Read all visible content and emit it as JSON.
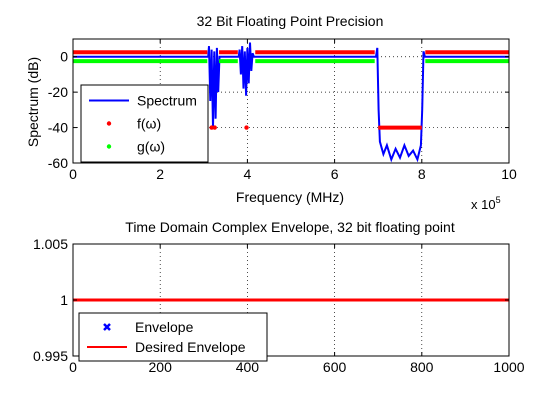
{
  "chart_data": [
    {
      "type": "line",
      "title": "32 Bit Floating Point Precision",
      "xlabel": "Frequency (MHz)",
      "ylabel": "Spectrum (dB)",
      "xlim": [
        0,
        1000000
      ],
      "ylim": [
        -60,
        10
      ],
      "x_ticks": [
        0,
        200000,
        400000,
        600000,
        800000,
        1000000
      ],
      "x_tick_labels": [
        "0",
        "2",
        "4",
        "6",
        "8",
        "10"
      ],
      "x_exponent_label": "x 10",
      "x_exponent_power": "5",
      "y_ticks": [
        -60,
        -40,
        -20,
        0
      ],
      "y_tick_labels": [
        "-60",
        "-40",
        "-20",
        "0"
      ],
      "grid": true,
      "legend_position": "bottom-left",
      "series": [
        {
          "name": "Spectrum",
          "style": "line",
          "color": "#0000ff",
          "points": [
            [
              0,
              0
            ],
            [
              310000,
              0
            ],
            [
              312000,
              6
            ],
            [
              315000,
              -25
            ],
            [
              318000,
              4
            ],
            [
              321000,
              -40
            ],
            [
              324000,
              3
            ],
            [
              327000,
              -35
            ],
            [
              330000,
              5
            ],
            [
              333000,
              -20
            ],
            [
              336000,
              0
            ],
            [
              380000,
              0
            ],
            [
              382000,
              4
            ],
            [
              385000,
              -10
            ],
            [
              388000,
              6
            ],
            [
              391000,
              -18
            ],
            [
              394000,
              3
            ],
            [
              397000,
              -22
            ],
            [
              400000,
              5
            ],
            [
              403000,
              -15
            ],
            [
              406000,
              8
            ],
            [
              409000,
              -8
            ],
            [
              412000,
              2
            ],
            [
              415000,
              0
            ],
            [
              695000,
              0
            ],
            [
              698000,
              5
            ],
            [
              701000,
              -30
            ],
            [
              704000,
              -48
            ],
            [
              712000,
              -55
            ],
            [
              720000,
              -50
            ],
            [
              730000,
              -58
            ],
            [
              740000,
              -52
            ],
            [
              750000,
              -57
            ],
            [
              760000,
              -50
            ],
            [
              770000,
              -56
            ],
            [
              780000,
              -53
            ],
            [
              790000,
              -58
            ],
            [
              798000,
              -50
            ],
            [
              801000,
              -30
            ],
            [
              804000,
              3
            ],
            [
              807000,
              0
            ],
            [
              1000000,
              0
            ]
          ]
        },
        {
          "name": "f(ω)",
          "style": "markers",
          "color": "#ff0000",
          "bands": [
            {
              "from": 0,
              "to": 308000,
              "y": 2.5
            },
            {
              "from": 335000,
              "to": 378000,
              "y": 2.5
            },
            {
              "from": 418000,
              "to": 692000,
              "y": 2.5
            },
            {
              "from": 808000,
              "to": 1000000,
              "y": 2.5
            },
            {
              "from": 700000,
              "to": 800000,
              "y": -40
            }
          ],
          "points": [
            [
              318000,
              -40
            ],
            [
              325000,
              -40
            ],
            [
              398000,
              -40
            ]
          ]
        },
        {
          "name": "g(ω)",
          "style": "markers",
          "color": "#00ff00",
          "bands": [
            {
              "from": 0,
              "to": 308000,
              "y": -2.5
            },
            {
              "from": 335000,
              "to": 378000,
              "y": -2.5
            },
            {
              "from": 418000,
              "to": 692000,
              "y": -2.5
            },
            {
              "from": 808000,
              "to": 1000000,
              "y": -2.5
            }
          ],
          "points": []
        }
      ]
    },
    {
      "type": "line",
      "title": "Time Domain Complex Envelope, 32 bit floating point",
      "xlabel": "",
      "ylabel": "",
      "xlim": [
        0,
        1000
      ],
      "ylim": [
        0.995,
        1.005
      ],
      "x_ticks": [
        0,
        200,
        400,
        600,
        800,
        1000
      ],
      "x_tick_labels": [
        "0",
        "200",
        "400",
        "600",
        "800",
        "1000"
      ],
      "y_ticks": [
        0.995,
        1,
        1.005
      ],
      "y_tick_labels": [
        "0.995",
        "1",
        "1.005"
      ],
      "grid": true,
      "legend_position": "bottom-left",
      "series": [
        {
          "name": "Envelope",
          "style": "markers",
          "marker": "x",
          "color": "#0000ff",
          "bands": [
            {
              "from": 0,
              "to": 1000,
              "y": 1
            }
          ]
        },
        {
          "name": "Desired Envelope",
          "style": "line",
          "color": "#ff0000",
          "points": [
            [
              0,
              1
            ],
            [
              1000,
              1
            ]
          ]
        }
      ]
    }
  ]
}
